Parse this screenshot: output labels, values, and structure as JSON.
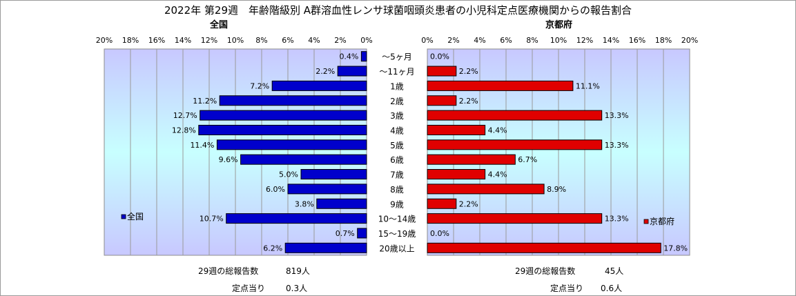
{
  "title": "2022年 第29週　年齢階級別 A群溶血性レンサ球菌咽頭炎患者の小児科定点医療機関からの報告割合",
  "colors": {
    "national": "#0000cc",
    "kyoto": "#e00000",
    "plot_top": "#c8c8ff",
    "plot_mid": "#c8ffff"
  },
  "chart_data": [
    {
      "type": "bar",
      "orientation": "horizontal",
      "direction": "right-to-left",
      "title": "全国",
      "categories": [
        "～5ヶ月",
        "～11ヶ月",
        "1歳",
        "2歳",
        "3歳",
        "4歳",
        "5歳",
        "6歳",
        "7歳",
        "8歳",
        "9歳",
        "10～14歳",
        "15～19歳",
        "20歳以上"
      ],
      "series": [
        {
          "name": "全国",
          "values": [
            0.4,
            2.2,
            7.2,
            11.2,
            12.7,
            12.8,
            11.4,
            9.6,
            5.0,
            6.0,
            3.8,
            10.7,
            0.7,
            6.2
          ]
        }
      ],
      "value_labels": [
        "0.4%",
        "2.2%",
        "7.2%",
        "11.2%",
        "12.7%",
        "12.8%",
        "11.4%",
        "9.6%",
        "5.0%",
        "6.0%",
        "3.8%",
        "10.7%",
        "0.7%",
        "6.2%"
      ],
      "xlim": [
        0,
        20
      ],
      "xticks": [
        20,
        18,
        16,
        14,
        12,
        10,
        8,
        6,
        4,
        2,
        0
      ],
      "xtick_labels": [
        "20%",
        "18%",
        "16%",
        "14%",
        "12%",
        "10%",
        "8%",
        "6%",
        "4%",
        "2%",
        "0%"
      ],
      "grid": true,
      "legend": "bottom-left",
      "summary": {
        "label1": "29週の総報告数",
        "value1": "819人",
        "label2": "定点当り",
        "value2": "0.3人"
      }
    },
    {
      "type": "bar",
      "orientation": "horizontal",
      "direction": "left-to-right",
      "title": "京都府",
      "categories": [
        "～5ヶ月",
        "～11ヶ月",
        "1歳",
        "2歳",
        "3歳",
        "4歳",
        "5歳",
        "6歳",
        "7歳",
        "8歳",
        "9歳",
        "10～14歳",
        "15～19歳",
        "20歳以上"
      ],
      "series": [
        {
          "name": "京都府",
          "values": [
            0.0,
            2.2,
            11.1,
            2.2,
            13.3,
            4.4,
            13.3,
            6.7,
            4.4,
            8.9,
            2.2,
            13.3,
            0.0,
            17.8
          ]
        }
      ],
      "value_labels": [
        "0.0%",
        "2.2%",
        "11.1%",
        "2.2%",
        "13.3%",
        "4.4%",
        "13.3%",
        "6.7%",
        "4.4%",
        "8.9%",
        "2.2%",
        "13.3%",
        "0.0%",
        "17.8%"
      ],
      "xlim": [
        0,
        20
      ],
      "xticks": [
        0,
        2,
        4,
        6,
        8,
        10,
        12,
        14,
        16,
        18,
        20
      ],
      "xtick_labels": [
        "0%",
        "2%",
        "4%",
        "6%",
        "8%",
        "10%",
        "12%",
        "14%",
        "16%",
        "18%",
        "20%"
      ],
      "grid": true,
      "legend": "bottom-right",
      "summary": {
        "label1": "29週の総報告数",
        "value1": "45人",
        "label2": "定点当り",
        "value2": "0.6人"
      }
    }
  ]
}
